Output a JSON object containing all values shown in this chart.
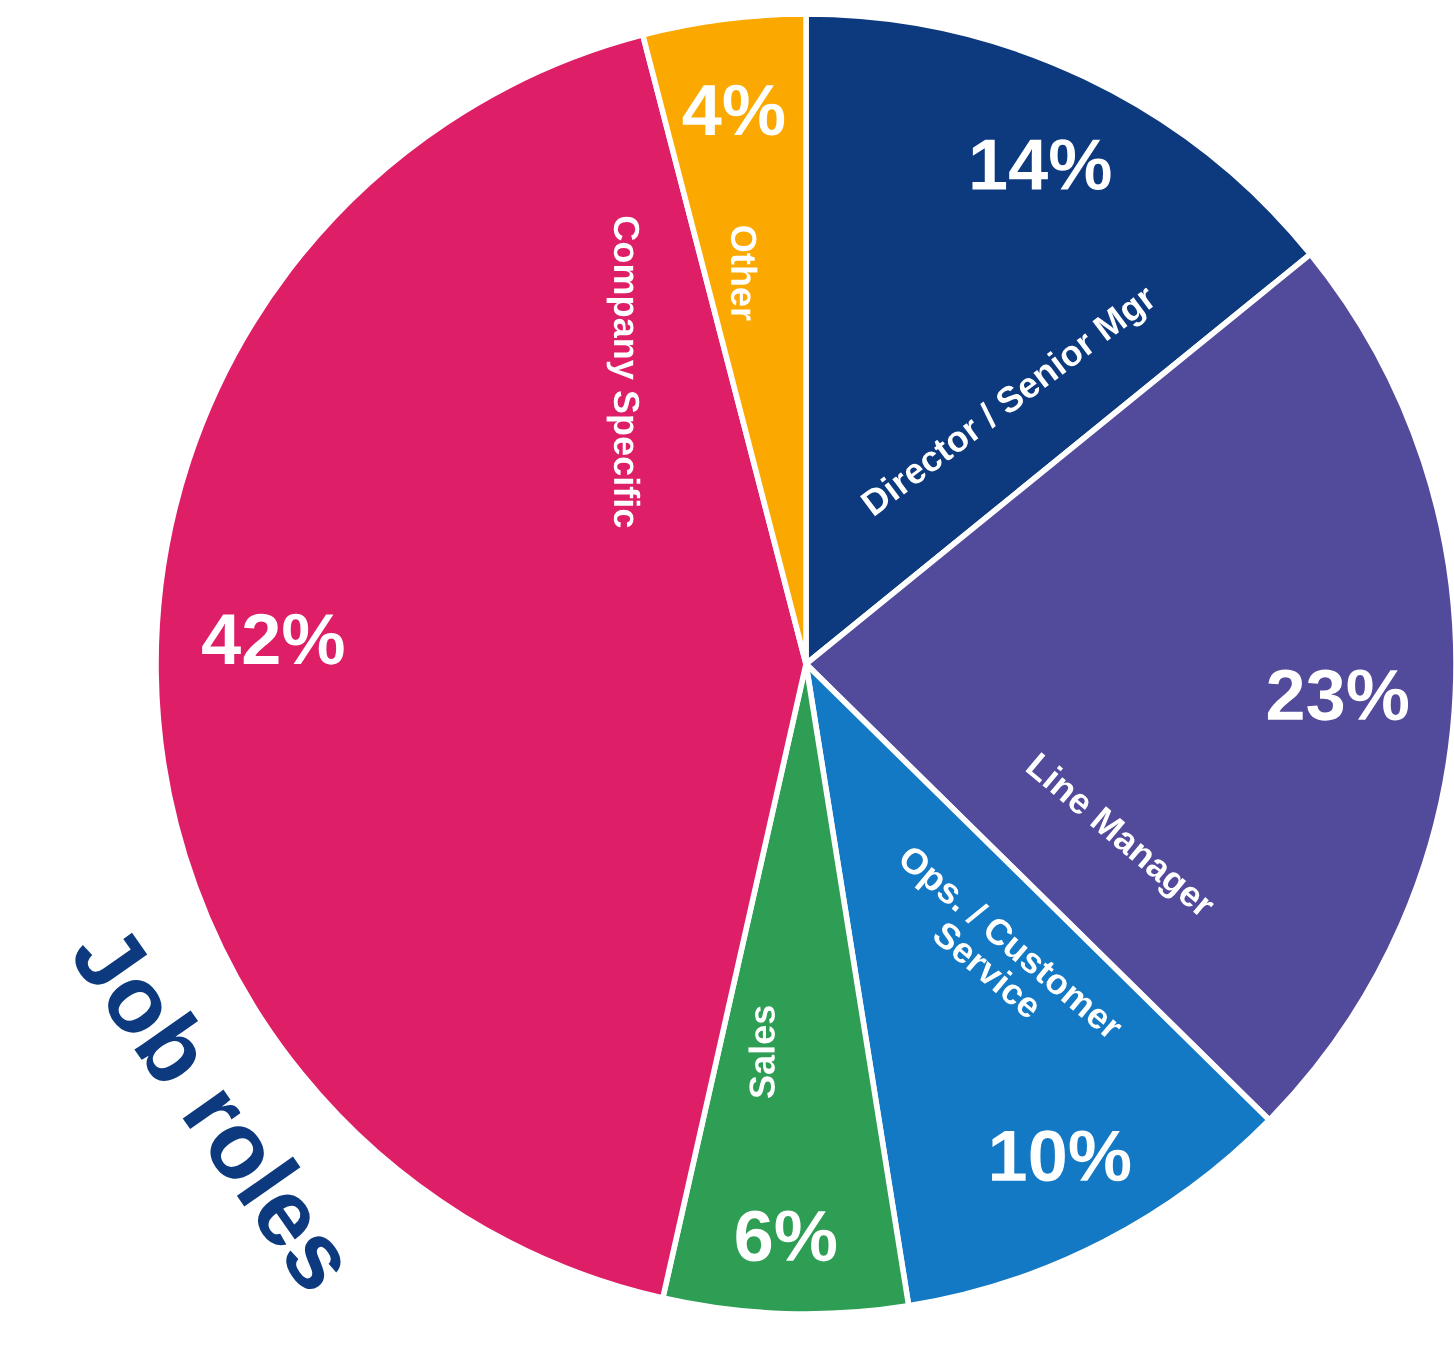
{
  "chart_data": {
    "type": "pie",
    "title": "Job roles",
    "categories": [
      "Director / Senior Mgr",
      "Line Manager",
      "Ops. / Customer Service",
      "Sales",
      "Company Specific",
      "Other"
    ],
    "values": [
      14,
      23,
      10,
      6,
      42,
      4
    ],
    "colors": [
      "#0d3a7e",
      "#524a9a",
      "#1479c4",
      "#2e9e55",
      "#de1f68",
      "#fba900"
    ],
    "value_labels": [
      "14%",
      "23%",
      "10%",
      "6%",
      "42%",
      "4%"
    ]
  }
}
